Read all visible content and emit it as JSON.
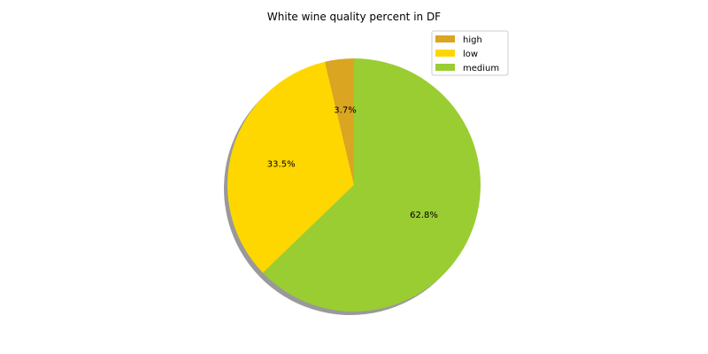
{
  "chart_data": {
    "type": "pie",
    "title": "White wine quality percent in DF",
    "slices": [
      {
        "label": "high",
        "value": 3.7,
        "pct_label": "3.7%",
        "color": "#DAA520"
      },
      {
        "label": "low",
        "value": 33.5,
        "pct_label": "33.5%",
        "color": "#FFD700"
      },
      {
        "label": "medium",
        "value": 62.8,
        "pct_label": "62.8%",
        "color": "#9ACD32"
      }
    ],
    "start_angle_deg": 90,
    "direction": "counterclockwise",
    "shadow": true,
    "legend": {
      "position": "upper-right"
    }
  }
}
